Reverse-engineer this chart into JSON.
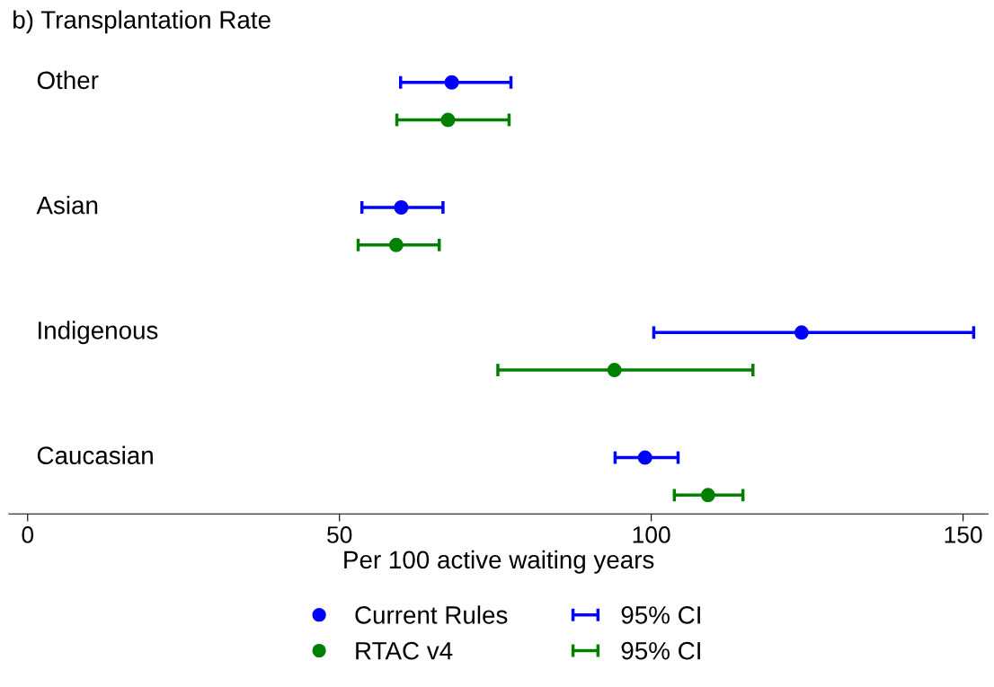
{
  "chart_data": {
    "type": "scatter",
    "orientation": "horizontal",
    "title": "b) Transplantation Rate",
    "xlabel": "Per 100 active waiting years",
    "categories": [
      "Other",
      "Asian",
      "Indigenous",
      "Caucasian"
    ],
    "series": [
      {
        "name": "Current Rules",
        "color": "#0000ff",
        "values": [
          68.0,
          59.9,
          124.1,
          99.0
        ],
        "errors": [
          [
            59.8,
            77.5
          ],
          [
            53.6,
            66.6
          ],
          [
            100.4,
            151.7
          ],
          [
            94.2,
            104.3
          ]
        ]
      },
      {
        "name": "RTAC v4",
        "color": "#008000",
        "values": [
          67.4,
          59.1,
          94.1,
          109.1
        ],
        "errors": [
          [
            59.2,
            77.2
          ],
          [
            53.0,
            66.0
          ],
          [
            75.4,
            116.3
          ],
          [
            103.7,
            114.7
          ]
        ]
      }
    ],
    "annotations": [
      "95% CI",
      "95% CI"
    ],
    "xlim": [
      -3,
      154
    ],
    "xticks": [
      0,
      50,
      100,
      150
    ],
    "grid": false,
    "legend": "bottom",
    "marker": "circle"
  }
}
